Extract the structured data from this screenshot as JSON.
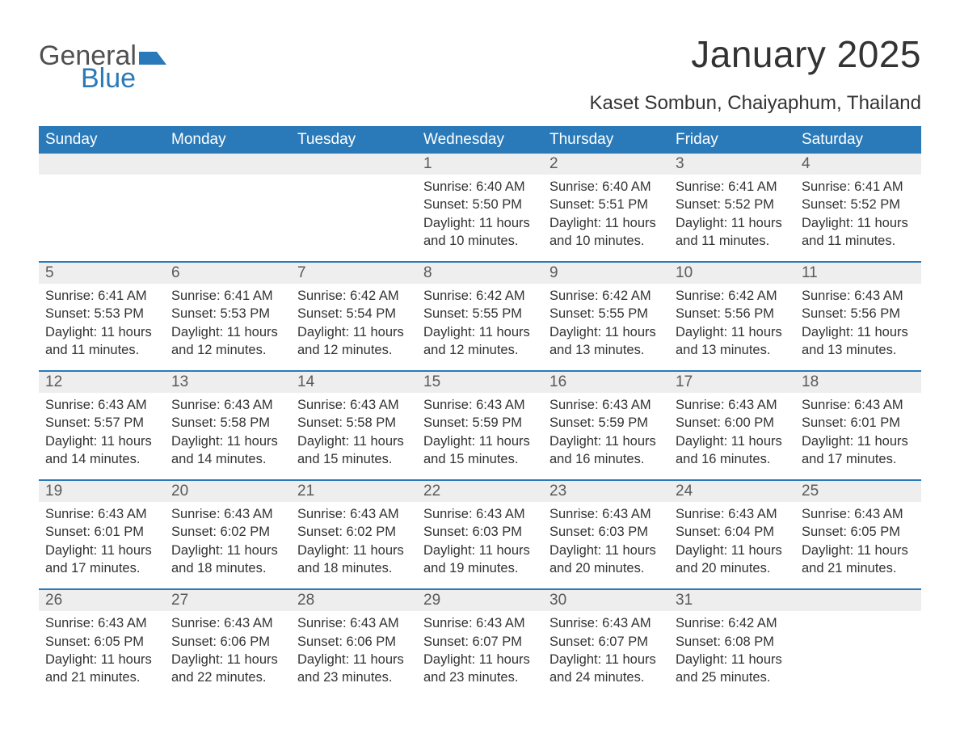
{
  "logo": {
    "general": "General",
    "blue": "Blue"
  },
  "title": "January 2025",
  "location": "Kaset Sombun, Chaiyaphum, Thailand",
  "colors": {
    "header_bg": "#2a7ab9",
    "header_fg": "#ffffff",
    "daynum_bg": "#eeeeee",
    "text": "#333333",
    "logo_gray": "#505050",
    "logo_blue": "#2a7ab9",
    "week_divider": "#2a7ab9"
  },
  "layout": {
    "columns": 7,
    "day_font_size_pt": 14,
    "body_font_size_pt": 12,
    "title_font_size_pt": 34,
    "location_font_size_pt": 18
  },
  "dow": [
    "Sunday",
    "Monday",
    "Tuesday",
    "Wednesday",
    "Thursday",
    "Friday",
    "Saturday"
  ],
  "weeks": [
    [
      null,
      null,
      null,
      {
        "n": "1",
        "sunrise": "6:40 AM",
        "sunset": "5:50 PM",
        "daylight": "11 hours and 10 minutes."
      },
      {
        "n": "2",
        "sunrise": "6:40 AM",
        "sunset": "5:51 PM",
        "daylight": "11 hours and 10 minutes."
      },
      {
        "n": "3",
        "sunrise": "6:41 AM",
        "sunset": "5:52 PM",
        "daylight": "11 hours and 11 minutes."
      },
      {
        "n": "4",
        "sunrise": "6:41 AM",
        "sunset": "5:52 PM",
        "daylight": "11 hours and 11 minutes."
      }
    ],
    [
      {
        "n": "5",
        "sunrise": "6:41 AM",
        "sunset": "5:53 PM",
        "daylight": "11 hours and 11 minutes."
      },
      {
        "n": "6",
        "sunrise": "6:41 AM",
        "sunset": "5:53 PM",
        "daylight": "11 hours and 12 minutes."
      },
      {
        "n": "7",
        "sunrise": "6:42 AM",
        "sunset": "5:54 PM",
        "daylight": "11 hours and 12 minutes."
      },
      {
        "n": "8",
        "sunrise": "6:42 AM",
        "sunset": "5:55 PM",
        "daylight": "11 hours and 12 minutes."
      },
      {
        "n": "9",
        "sunrise": "6:42 AM",
        "sunset": "5:55 PM",
        "daylight": "11 hours and 13 minutes."
      },
      {
        "n": "10",
        "sunrise": "6:42 AM",
        "sunset": "5:56 PM",
        "daylight": "11 hours and 13 minutes."
      },
      {
        "n": "11",
        "sunrise": "6:43 AM",
        "sunset": "5:56 PM",
        "daylight": "11 hours and 13 minutes."
      }
    ],
    [
      {
        "n": "12",
        "sunrise": "6:43 AM",
        "sunset": "5:57 PM",
        "daylight": "11 hours and 14 minutes."
      },
      {
        "n": "13",
        "sunrise": "6:43 AM",
        "sunset": "5:58 PM",
        "daylight": "11 hours and 14 minutes."
      },
      {
        "n": "14",
        "sunrise": "6:43 AM",
        "sunset": "5:58 PM",
        "daylight": "11 hours and 15 minutes."
      },
      {
        "n": "15",
        "sunrise": "6:43 AM",
        "sunset": "5:59 PM",
        "daylight": "11 hours and 15 minutes."
      },
      {
        "n": "16",
        "sunrise": "6:43 AM",
        "sunset": "5:59 PM",
        "daylight": "11 hours and 16 minutes."
      },
      {
        "n": "17",
        "sunrise": "6:43 AM",
        "sunset": "6:00 PM",
        "daylight": "11 hours and 16 minutes."
      },
      {
        "n": "18",
        "sunrise": "6:43 AM",
        "sunset": "6:01 PM",
        "daylight": "11 hours and 17 minutes."
      }
    ],
    [
      {
        "n": "19",
        "sunrise": "6:43 AM",
        "sunset": "6:01 PM",
        "daylight": "11 hours and 17 minutes."
      },
      {
        "n": "20",
        "sunrise": "6:43 AM",
        "sunset": "6:02 PM",
        "daylight": "11 hours and 18 minutes."
      },
      {
        "n": "21",
        "sunrise": "6:43 AM",
        "sunset": "6:02 PM",
        "daylight": "11 hours and 18 minutes."
      },
      {
        "n": "22",
        "sunrise": "6:43 AM",
        "sunset": "6:03 PM",
        "daylight": "11 hours and 19 minutes."
      },
      {
        "n": "23",
        "sunrise": "6:43 AM",
        "sunset": "6:03 PM",
        "daylight": "11 hours and 20 minutes."
      },
      {
        "n": "24",
        "sunrise": "6:43 AM",
        "sunset": "6:04 PM",
        "daylight": "11 hours and 20 minutes."
      },
      {
        "n": "25",
        "sunrise": "6:43 AM",
        "sunset": "6:05 PM",
        "daylight": "11 hours and 21 minutes."
      }
    ],
    [
      {
        "n": "26",
        "sunrise": "6:43 AM",
        "sunset": "6:05 PM",
        "daylight": "11 hours and 21 minutes."
      },
      {
        "n": "27",
        "sunrise": "6:43 AM",
        "sunset": "6:06 PM",
        "daylight": "11 hours and 22 minutes."
      },
      {
        "n": "28",
        "sunrise": "6:43 AM",
        "sunset": "6:06 PM",
        "daylight": "11 hours and 23 minutes."
      },
      {
        "n": "29",
        "sunrise": "6:43 AM",
        "sunset": "6:07 PM",
        "daylight": "11 hours and 23 minutes."
      },
      {
        "n": "30",
        "sunrise": "6:43 AM",
        "sunset": "6:07 PM",
        "daylight": "11 hours and 24 minutes."
      },
      {
        "n": "31",
        "sunrise": "6:42 AM",
        "sunset": "6:08 PM",
        "daylight": "11 hours and 25 minutes."
      },
      null
    ]
  ],
  "labels": {
    "sunrise": "Sunrise:",
    "sunset": "Sunset:",
    "daylight": "Daylight:"
  }
}
